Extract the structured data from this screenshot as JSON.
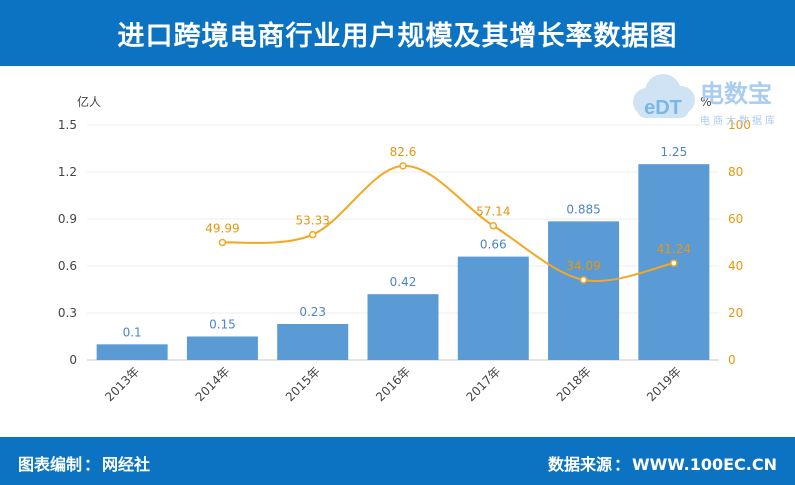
{
  "header": {
    "title": "进口跨境电商行业用户规模及其增长率数据图"
  },
  "footer": {
    "left_label": "图表编制",
    "left_value": "网经社",
    "right_label": "数据来源",
    "right_value": "WWW.100EC.CN",
    "separator": "："
  },
  "logo": {
    "text": "电数宝",
    "sub": "电商大数据库",
    "mark": "eDT"
  },
  "colors": {
    "header": "#0b73c1",
    "bar": "#5b9bd5",
    "line": "#f5a623",
    "bar_label": "#4a86c5",
    "line_label": "#e8960c"
  },
  "chart_data": {
    "type": "bar",
    "categories": [
      "2013年",
      "2014年",
      "2015年",
      "2016年",
      "2017年",
      "2018年",
      "2019年"
    ],
    "series": [
      {
        "type": "bar",
        "axis": "left",
        "values": [
          0.1,
          0.15,
          0.23,
          0.42,
          0.66,
          0.885,
          1.25
        ],
        "labels": [
          "0.1",
          "0.15",
          "0.23",
          "0.42",
          "0.66",
          "0.885",
          "1.25"
        ]
      },
      {
        "type": "line",
        "axis": "right",
        "values": [
          null,
          49.99,
          53.33,
          82.6,
          57.14,
          34.09,
          41.24
        ],
        "labels": [
          "",
          "49.99",
          "53.33",
          "82.6",
          "57.14",
          "34.09",
          "41.24"
        ]
      }
    ],
    "ylabel_left": "亿人",
    "ylabel_right": "%",
    "ylim_left": [
      0,
      1.5
    ],
    "ylim_right": [
      0,
      100
    ],
    "yticks_left": [
      "0",
      "0.3",
      "0.6",
      "0.9",
      "1.2",
      "1.5"
    ],
    "yticks_right": [
      "0",
      "20",
      "40",
      "60",
      "80",
      "100"
    ],
    "grid": true
  }
}
